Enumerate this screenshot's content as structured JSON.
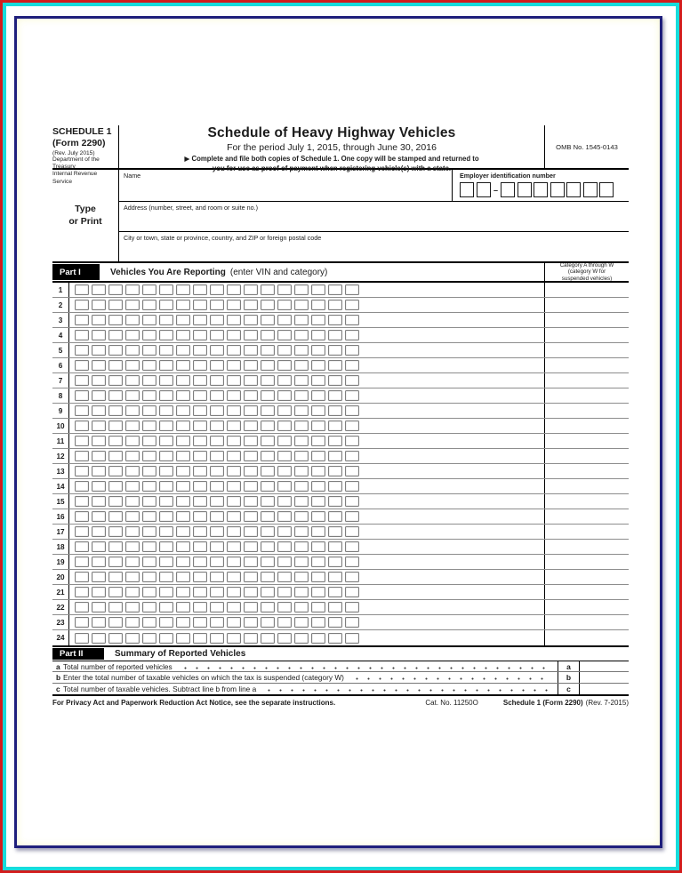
{
  "frame": {
    "red": "#d31d1d",
    "cyan": "#17dcdc",
    "navy": "#1f1f7c",
    "black": "#151515"
  },
  "header": {
    "schedule_label": "SCHEDULE 1",
    "form_label": "(Form 2290)",
    "revision": "(Rev. July 2015)",
    "agency_line1": "Department of the Treasury",
    "agency_line2": "Internal Revenue Service",
    "title": "Schedule of Heavy Highway Vehicles",
    "period": "For the period July 1, 2015, through June 30, 2016",
    "instruction_line1": "▶ Complete and file both copies of Schedule 1.  One copy will be stamped and returned to",
    "instruction_line2": "you for use as proof of payment when registering vehicle(s) with a state.",
    "omb": "OMB No. 1545-0143"
  },
  "identity": {
    "type_print_line1": "Type",
    "type_print_line2": "or Print",
    "name_label": "Name",
    "ein_label": "Employer identification number",
    "ein_dash": "–",
    "ein_prefix_boxes": 2,
    "ein_suffix_boxes": 7,
    "address_label": "Address (number, street, and room or suite no.)",
    "city_label": "City or town, state or province, country, and ZIP or foreign postal code"
  },
  "part1": {
    "label": "Part I",
    "title": "Vehicles You Are Reporting",
    "title_suffix": "(enter VIN and category)",
    "category_header_line1": "Category A through W",
    "category_header_line2": "(category W for",
    "category_header_line3": "suspended vehicles)",
    "row_numbers": [
      "1",
      "2",
      "3",
      "4",
      "5",
      "6",
      "7",
      "8",
      "9",
      "10",
      "11",
      "12",
      "13",
      "14",
      "15",
      "16",
      "17",
      "18",
      "19",
      "20",
      "21",
      "22",
      "23",
      "24"
    ],
    "vin_boxes_per_row": 17
  },
  "part2": {
    "label": "Part II",
    "title": "Summary of Reported Vehicles",
    "lines": [
      {
        "letter": "a",
        "text": "Total number of reported vehicles",
        "box_letter": "a"
      },
      {
        "letter": "b",
        "text": "Enter the total number of taxable vehicles on which the tax is suspended (category W)",
        "box_letter": "b"
      },
      {
        "letter": "c",
        "text": "Total number of taxable vehicles. Subtract line b from line a",
        "box_letter": "c"
      }
    ]
  },
  "footer": {
    "privacy_notice": "For Privacy Act and Paperwork Reduction Act Notice, see the separate instructions.",
    "cat_no": "Cat. No. 11250O",
    "form_ref": "Schedule 1 (Form 2290)",
    "rev_note": "(Rev. 7-2015)"
  }
}
